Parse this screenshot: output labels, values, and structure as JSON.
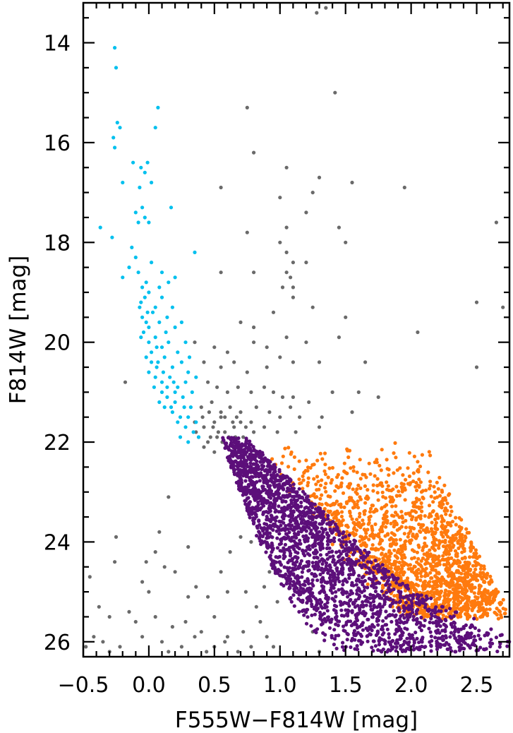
{
  "chart_data": {
    "type": "scatter",
    "xlabel": "F555W−F814W [mag]",
    "ylabel": "F814W [mag]",
    "xlim": [
      -0.5,
      2.75
    ],
    "ylim": [
      26.3,
      13.2
    ],
    "y_inverted": true,
    "grid": false,
    "legend": "none",
    "x_ticks": [
      {
        "value": -0.5,
        "label": "−0.5"
      },
      {
        "value": 0.0,
        "label": "0.0"
      },
      {
        "value": 0.5,
        "label": "0.5"
      },
      {
        "value": 1.0,
        "label": "1.0"
      },
      {
        "value": 1.5,
        "label": "1.5"
      },
      {
        "value": 2.0,
        "label": "2.0"
      },
      {
        "value": 2.5,
        "label": "2.5"
      }
    ],
    "y_ticks": [
      {
        "value": 14,
        "label": "14"
      },
      {
        "value": 16,
        "label": "16"
      },
      {
        "value": 18,
        "label": "18"
      },
      {
        "value": 20,
        "label": "20"
      },
      {
        "value": 22,
        "label": "22"
      },
      {
        "value": 24,
        "label": "24"
      },
      {
        "value": 26,
        "label": "26"
      }
    ],
    "series": [
      {
        "color": "#00c0ee",
        "description_points": "upper main sequence / blue stars",
        "points": [
          [
            -0.26,
            14.1
          ],
          [
            -0.25,
            14.5
          ],
          [
            -0.24,
            15.6
          ],
          [
            -0.22,
            15.7
          ],
          [
            -0.27,
            15.9
          ],
          [
            -0.26,
            16.1
          ],
          [
            0.07,
            15.3
          ],
          [
            0.05,
            15.7
          ],
          [
            -0.12,
            16.4
          ],
          [
            -0.06,
            16.5
          ],
          [
            -0.03,
            16.6
          ],
          [
            -0.01,
            16.4
          ],
          [
            -0.2,
            16.8
          ],
          [
            -0.07,
            16.9
          ],
          [
            0.02,
            16.8
          ],
          [
            -0.05,
            17.3
          ],
          [
            0.17,
            17.3
          ],
          [
            -0.1,
            17.4
          ],
          [
            -0.08,
            17.6
          ],
          [
            -0.03,
            17.5
          ],
          [
            0.0,
            17.6
          ],
          [
            -0.37,
            17.7
          ],
          [
            -0.28,
            17.9
          ],
          [
            0.35,
            18.2
          ],
          [
            -0.13,
            18.1
          ],
          [
            -0.1,
            18.3
          ],
          [
            -0.15,
            18.5
          ],
          [
            -0.08,
            18.6
          ],
          [
            -0.05,
            18.9
          ],
          [
            -0.02,
            18.8
          ],
          [
            0.08,
            18.9
          ],
          [
            0.15,
            18.8
          ],
          [
            0.2,
            18.7
          ],
          [
            -0.2,
            18.7
          ],
          [
            -0.03,
            19.1
          ],
          [
            -0.06,
            19.2
          ],
          [
            0.0,
            19.0
          ],
          [
            0.05,
            19.3
          ],
          [
            0.1,
            19.1
          ],
          [
            0.18,
            19.3
          ],
          [
            -0.05,
            19.5
          ],
          [
            -0.02,
            19.6
          ],
          [
            0.03,
            19.4
          ],
          [
            0.08,
            19.6
          ],
          [
            0.14,
            19.5
          ],
          [
            0.2,
            19.7
          ],
          [
            0.25,
            19.6
          ],
          [
            -0.04,
            19.8
          ],
          [
            0.0,
            20.0
          ],
          [
            0.05,
            19.9
          ],
          [
            0.1,
            20.1
          ],
          [
            0.15,
            20.0
          ],
          [
            0.22,
            20.2
          ],
          [
            0.28,
            20.0
          ],
          [
            -0.02,
            20.3
          ],
          [
            0.02,
            20.4
          ],
          [
            0.06,
            20.5
          ],
          [
            0.12,
            20.3
          ],
          [
            0.18,
            20.5
          ],
          [
            0.25,
            20.4
          ],
          [
            0.3,
            20.6
          ],
          [
            0.0,
            20.6
          ],
          [
            0.05,
            20.7
          ],
          [
            0.1,
            20.8
          ],
          [
            0.16,
            20.7
          ],
          [
            0.22,
            20.9
          ],
          [
            0.28,
            20.8
          ],
          [
            0.33,
            21.0
          ],
          [
            0.04,
            20.9
          ],
          [
            0.1,
            21.0
          ],
          [
            0.14,
            21.1
          ],
          [
            0.2,
            21.2
          ],
          [
            0.26,
            21.1
          ],
          [
            0.32,
            21.3
          ],
          [
            0.12,
            21.3
          ],
          [
            0.18,
            21.4
          ],
          [
            0.24,
            21.5
          ],
          [
            0.3,
            21.5
          ],
          [
            0.36,
            21.6
          ],
          [
            0.22,
            21.6
          ],
          [
            0.28,
            21.7
          ],
          [
            0.34,
            21.8
          ],
          [
            0.08,
            21.2
          ],
          [
            0.02,
            20.2
          ],
          [
            -0.06,
            19.9
          ],
          [
            0.14,
            20.9
          ],
          [
            0.2,
            21.0
          ],
          [
            0.06,
            20.1
          ],
          [
            0.11,
            20.6
          ],
          [
            0.0,
            19.7
          ],
          [
            0.17,
            21.3
          ],
          [
            0.27,
            21.3
          ],
          [
            0.36,
            20.7
          ],
          [
            0.31,
            20.3
          ],
          [
            -0.07,
            19.3
          ],
          [
            0.1,
            18.6
          ],
          [
            0.02,
            18.4
          ],
          [
            -0.01,
            19.4
          ],
          [
            0.13,
            19.8
          ],
          [
            0.24,
            21.9
          ],
          [
            0.3,
            22.0
          ],
          [
            0.38,
            21.9
          ],
          [
            0.07,
            20.4
          ],
          [
            0.19,
            20.8
          ]
        ]
      },
      {
        "color": "#5c0f7a",
        "description_points": "lower main sequence",
        "band": {
          "x_start": [
            0.55,
            22.0
          ],
          "x_end": [
            2.0,
            25.6
          ],
          "lower_end": [
            1.1,
            26.2
          ],
          "n": 2200
        }
      },
      {
        "color": "#ff7a0e",
        "description_points": "red stars",
        "region": {
          "center": [
            1.9,
            24.0
          ],
          "spread": [
            0.35,
            0.8
          ],
          "n": 1700
        }
      },
      {
        "color": "#6a6a6a",
        "description_points": "other stars",
        "points": [
          [
            1.35,
            13.3
          ],
          [
            1.28,
            13.4
          ],
          [
            1.42,
            15.0
          ],
          [
            0.75,
            15.3
          ],
          [
            0.8,
            16.2
          ],
          [
            1.05,
            16.5
          ],
          [
            1.55,
            16.8
          ],
          [
            1.3,
            16.7
          ],
          [
            1.95,
            16.9
          ],
          [
            0.55,
            16.9
          ],
          [
            1.0,
            17.1
          ],
          [
            1.25,
            17.0
          ],
          [
            1.2,
            17.4
          ],
          [
            0.75,
            17.8
          ],
          [
            1.05,
            17.7
          ],
          [
            1.45,
            17.7
          ],
          [
            1.0,
            18.0
          ],
          [
            1.05,
            18.2
          ],
          [
            1.1,
            18.4
          ],
          [
            1.05,
            18.6
          ],
          [
            1.08,
            18.7
          ],
          [
            1.02,
            18.9
          ],
          [
            1.1,
            18.9
          ],
          [
            1.5,
            18.0
          ],
          [
            0.55,
            18.6
          ],
          [
            0.8,
            18.6
          ],
          [
            1.2,
            18.4
          ],
          [
            2.65,
            17.6
          ],
          [
            1.1,
            19.1
          ],
          [
            1.25,
            19.3
          ],
          [
            0.95,
            19.4
          ],
          [
            0.7,
            19.6
          ],
          [
            0.8,
            19.7
          ],
          [
            1.5,
            19.5
          ],
          [
            2.5,
            19.2
          ],
          [
            2.7,
            19.3
          ],
          [
            0.35,
            20.0
          ],
          [
            0.5,
            20.1
          ],
          [
            0.6,
            20.2
          ],
          [
            0.8,
            20.0
          ],
          [
            0.9,
            20.1
          ],
          [
            1.05,
            19.9
          ],
          [
            1.2,
            20.0
          ],
          [
            1.45,
            19.9
          ],
          [
            2.05,
            19.8
          ],
          [
            0.42,
            20.4
          ],
          [
            0.55,
            20.5
          ],
          [
            0.65,
            20.4
          ],
          [
            0.75,
            20.6
          ],
          [
            0.9,
            20.5
          ],
          [
            1.0,
            20.3
          ],
          [
            1.1,
            20.4
          ],
          [
            1.3,
            20.4
          ],
          [
            1.65,
            20.4
          ],
          [
            2.5,
            20.5
          ],
          [
            -0.18,
            20.8
          ],
          [
            0.45,
            20.8
          ],
          [
            0.52,
            20.9
          ],
          [
            0.6,
            21.0
          ],
          [
            0.68,
            20.9
          ],
          [
            0.78,
            21.0
          ],
          [
            0.88,
            20.9
          ],
          [
            0.95,
            21.0
          ],
          [
            1.02,
            21.1
          ],
          [
            1.1,
            21.1
          ],
          [
            1.22,
            21.2
          ],
          [
            1.4,
            21.0
          ],
          [
            1.6,
            21.0
          ],
          [
            1.75,
            21.1
          ],
          [
            0.4,
            21.3
          ],
          [
            0.48,
            21.2
          ],
          [
            0.55,
            21.4
          ],
          [
            0.62,
            21.3
          ],
          [
            0.7,
            21.4
          ],
          [
            0.82,
            21.3
          ],
          [
            0.92,
            21.4
          ],
          [
            1.0,
            21.5
          ],
          [
            1.08,
            21.3
          ],
          [
            1.15,
            21.5
          ],
          [
            1.32,
            21.5
          ],
          [
            1.55,
            21.4
          ],
          [
            0.35,
            21.6
          ],
          [
            0.42,
            21.7
          ],
          [
            0.5,
            21.6
          ],
          [
            0.58,
            21.8
          ],
          [
            0.65,
            21.7
          ],
          [
            0.72,
            21.9
          ],
          [
            0.8,
            21.8
          ],
          [
            0.88,
            21.7
          ],
          [
            0.98,
            21.8
          ],
          [
            1.12,
            21.8
          ],
          [
            1.3,
            21.7
          ],
          [
            0.38,
            21.9
          ],
          [
            0.45,
            22.0
          ],
          [
            0.52,
            21.9
          ],
          [
            0.6,
            22.1
          ],
          [
            0.66,
            21.9
          ],
          [
            0.42,
            22.1
          ],
          [
            0.5,
            22.2
          ],
          [
            0.55,
            21.5
          ],
          [
            0.46,
            21.4
          ],
          [
            0.64,
            21.6
          ],
          [
            0.7,
            21.6
          ],
          [
            0.58,
            21.5
          ],
          [
            0.53,
            21.8
          ],
          [
            0.61,
            21.9
          ],
          [
            0.49,
            21.7
          ],
          [
            0.41,
            21.5
          ],
          [
            0.67,
            21.5
          ],
          [
            0.74,
            21.7
          ],
          [
            0.56,
            22.0
          ],
          [
            0.47,
            21.9
          ],
          [
            0.36,
            21.8
          ],
          [
            0.64,
            22.2
          ],
          [
            0.78,
            21.6
          ],
          [
            0.15,
            23.1
          ],
          [
            -0.25,
            23.9
          ],
          [
            0.05,
            24.2
          ],
          [
            0.12,
            24.5
          ],
          [
            0.2,
            24.6
          ],
          [
            -0.05,
            24.8
          ],
          [
            0.0,
            25.0
          ],
          [
            0.3,
            25.1
          ],
          [
            -0.45,
            24.7
          ],
          [
            -0.38,
            25.3
          ],
          [
            -0.3,
            25.5
          ],
          [
            -0.15,
            25.4
          ],
          [
            -0.1,
            25.6
          ],
          [
            0.05,
            25.5
          ],
          [
            0.18,
            25.7
          ],
          [
            0.28,
            25.6
          ],
          [
            0.45,
            25.1
          ],
          [
            0.55,
            24.6
          ],
          [
            0.62,
            24.2
          ],
          [
            0.7,
            23.9
          ],
          [
            0.78,
            24.0
          ],
          [
            0.6,
            25.0
          ],
          [
            0.5,
            25.5
          ],
          [
            0.4,
            25.8
          ],
          [
            -0.42,
            25.9
          ],
          [
            -0.48,
            26.1
          ],
          [
            -0.35,
            26.0
          ],
          [
            -0.22,
            26.1
          ],
          [
            -0.05,
            25.9
          ],
          [
            0.1,
            26.0
          ],
          [
            0.25,
            26.1
          ],
          [
            0.35,
            25.9
          ],
          [
            0.5,
            26.1
          ],
          [
            0.6,
            25.9
          ],
          [
            0.72,
            25.8
          ],
          [
            0.78,
            26.1
          ],
          [
            0.85,
            25.6
          ],
          [
            0.9,
            25.9
          ],
          [
            0.95,
            26.1
          ],
          [
            0.68,
            26.2
          ],
          [
            0.82,
            25.3
          ],
          [
            0.74,
            25.0
          ],
          [
            0.88,
            24.9
          ],
          [
            0.08,
            23.8
          ],
          [
            -0.02,
            24.4
          ],
          [
            0.3,
            24.1
          ],
          [
            0.36,
            24.9
          ],
          [
            -0.26,
            24.4
          ],
          [
            1.3,
            26.2
          ],
          [
            1.25,
            25.8
          ],
          [
            0.98,
            25.2
          ],
          [
            0.92,
            24.6
          ],
          [
            0.58,
            26.0
          ],
          [
            0.44,
            26.2
          ],
          [
            0.15,
            26.2
          ],
          [
            -0.3,
            26.2
          ]
        ]
      }
    ]
  }
}
